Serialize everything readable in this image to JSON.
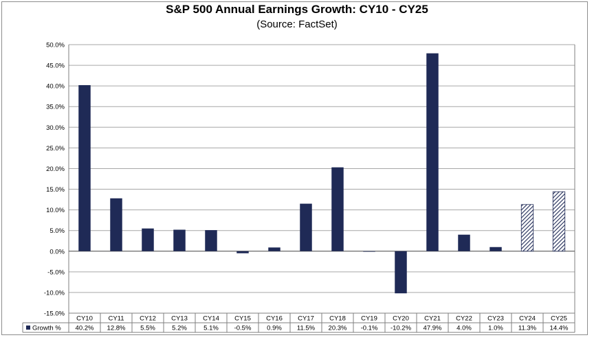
{
  "chart_data": {
    "type": "bar",
    "title": "S&P 500 Annual Earnings Growth: CY10 - CY25",
    "subtitle": "(Source: FactSet)",
    "categories": [
      "CY10",
      "CY11",
      "CY12",
      "CY13",
      "CY14",
      "CY15",
      "CY16",
      "CY17",
      "CY18",
      "CY19",
      "CY20",
      "CY21",
      "CY22",
      "CY23",
      "CY24",
      "CY25"
    ],
    "series": [
      {
        "name": "Growth %",
        "values": [
          40.2,
          12.8,
          5.5,
          5.2,
          5.1,
          -0.5,
          0.9,
          11.5,
          20.3,
          -0.1,
          -10.2,
          47.9,
          4.0,
          1.0,
          11.3,
          14.4
        ],
        "labels": [
          "40.2%",
          "12.8%",
          "5.5%",
          "5.2%",
          "5.1%",
          "-0.5%",
          "0.9%",
          "11.5%",
          "20.3%",
          "-0.1%",
          "-10.2%",
          "47.9%",
          "4.0%",
          "1.0%",
          "11.3%",
          "14.4%"
        ]
      }
    ],
    "estimated": [
      false,
      false,
      false,
      false,
      false,
      false,
      false,
      false,
      false,
      false,
      false,
      false,
      false,
      false,
      true,
      true
    ],
    "ylim": [
      -15,
      50
    ],
    "yticks": [
      -15,
      -10,
      -5,
      0,
      5,
      10,
      15,
      20,
      25,
      30,
      35,
      40,
      45,
      50
    ],
    "ytick_labels": [
      "-15.0%",
      "-10.0%",
      "-5.0%",
      "0.0%",
      "5.0%",
      "10.0%",
      "15.0%",
      "20.0%",
      "25.0%",
      "30.0%",
      "35.0%",
      "40.0%",
      "45.0%",
      "50.0%"
    ],
    "grid": true,
    "legend": "data-table",
    "colors": {
      "bar": "#1f2a56",
      "grid": "#a6a6a6",
      "axis": "#7f7f7f"
    }
  }
}
